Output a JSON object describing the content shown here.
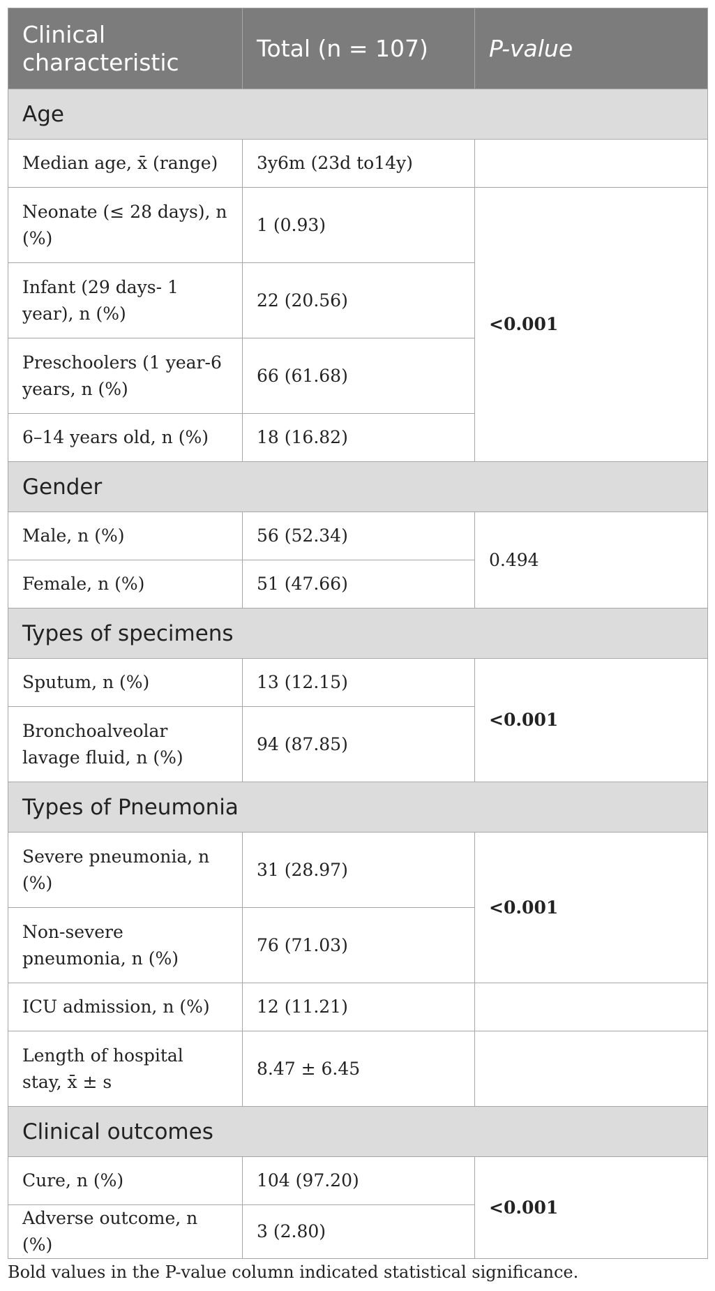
{
  "header": {
    "col1": "Clinical characteristic",
    "col2": "Total (n = 107)",
    "col3": "P-value"
  },
  "sections": {
    "age": {
      "title": "Age",
      "median_label": "Median age, x̄ (range)",
      "median_value": "3y6m (23d to14y)",
      "neonate_label": "Neonate (≤ 28 days), n (%)",
      "neonate_value": "1 (0.93)",
      "infant_label": "Infant (29 days- 1 year), n (%)",
      "infant_value": "22 (20.56)",
      "preschool_label": "Preschoolers (1 year-6 years, n (%)",
      "preschool_value": "66 (61.68)",
      "older_label": "6–14 years old, n (%)",
      "older_value": "18 (16.82)",
      "p_value": "<0.001"
    },
    "gender": {
      "title": "Gender",
      "male_label": "Male, n (%)",
      "male_value": "56 (52.34)",
      "female_label": "Female, n (%)",
      "female_value": "51 (47.66)",
      "p_value": "0.494"
    },
    "specimens": {
      "title": "Types of specimens",
      "sputum_label": "Sputum, n (%)",
      "sputum_value": "13 (12.15)",
      "balf_label": "Bronchoalveolar lavage fluid, n (%)",
      "balf_value": "94 (87.85)",
      "p_value": "<0.001"
    },
    "pneumonia": {
      "title": "Types of Pneumonia",
      "severe_label": "Severe pneumonia, n (%)",
      "severe_value": "31 (28.97)",
      "nonsevere_label": "Non-severe pneumonia, n (%)",
      "nonsevere_value": "76 (71.03)",
      "p_value": "<0.001",
      "icu_label": "ICU admission, n (%)",
      "icu_value": "12 (11.21)",
      "stay_label": "Length of hospital stay, x̄ ± s",
      "stay_value": "8.47 ± 6.45"
    },
    "outcomes": {
      "title": "Clinical outcomes",
      "cure_label": "Cure, n (%)",
      "cure_value": "104 (97.20)",
      "adverse_label": "Adverse outcome, n (%)",
      "adverse_value": "3 (2.80)",
      "p_value": "<0.001"
    }
  },
  "footnote": "Bold values in the P-value column indicated statistical significance."
}
